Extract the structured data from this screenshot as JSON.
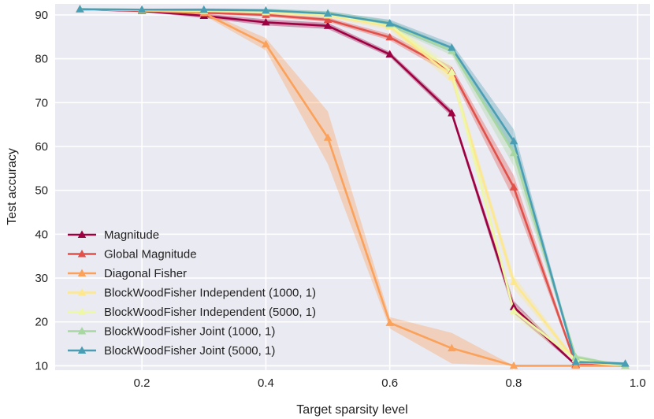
{
  "chart_data": {
    "type": "line",
    "title": "",
    "xlabel": "Target sparsity level",
    "ylabel": "Test accuracy",
    "xlim": [
      0.06,
      1.02
    ],
    "ylim": [
      9,
      92.5
    ],
    "xticks": [
      0.2,
      0.4,
      0.6,
      0.8,
      1.0
    ],
    "xtick_labels": [
      "0.2",
      "0.4",
      "0.6",
      "0.8",
      "1.0"
    ],
    "yticks": [
      10,
      20,
      30,
      40,
      50,
      60,
      70,
      80,
      90
    ],
    "ytick_labels": [
      "10",
      "20",
      "30",
      "40",
      "50",
      "60",
      "70",
      "80",
      "90"
    ],
    "grid": true,
    "legend_position": "bottom-left",
    "x": [
      0.1,
      0.2,
      0.3,
      0.4,
      0.5,
      0.6,
      0.7,
      0.8,
      0.9,
      0.98
    ],
    "series": [
      {
        "name": "Magnitude",
        "color": "#9e0142",
        "values": [
          91.3,
          90.9,
          89.8,
          88.3,
          87.5,
          81.0,
          67.6,
          23.4,
          10.2,
          10.0
        ],
        "lower": [
          91.1,
          90.7,
          89.3,
          87.6,
          86.8,
          80.4,
          66.8,
          22.0,
          10.0,
          10.0
        ],
        "upper": [
          91.5,
          91.1,
          90.3,
          89.0,
          88.2,
          81.6,
          68.4,
          24.8,
          10.4,
          10.0
        ]
      },
      {
        "name": "Global Magnitude",
        "color": "#e2504a",
        "values": [
          91.3,
          91.0,
          90.5,
          90.0,
          88.9,
          84.9,
          77.2,
          50.7,
          10.3,
          10.0
        ],
        "lower": [
          91.1,
          90.8,
          90.2,
          89.6,
          88.4,
          84.2,
          76.2,
          48.0,
          10.0,
          10.0
        ],
        "upper": [
          91.5,
          91.2,
          90.8,
          90.4,
          89.4,
          85.6,
          78.2,
          53.4,
          10.6,
          10.0
        ]
      },
      {
        "name": "Diagonal Fisher",
        "color": "#fba15a",
        "values": [
          91.3,
          91.0,
          90.4,
          83.3,
          62.0,
          19.8,
          14.0,
          10.0,
          10.0,
          10.0
        ],
        "lower": [
          91.1,
          90.7,
          89.9,
          81.9,
          56.0,
          18.5,
          10.5,
          10.0,
          10.0,
          10.0
        ],
        "upper": [
          91.5,
          91.3,
          90.9,
          84.7,
          68.0,
          21.1,
          17.5,
          10.0,
          10.0,
          10.0
        ]
      },
      {
        "name": "BlockWoodFisher Independent (1000, 1)",
        "color": "#fde88e",
        "values": [
          91.3,
          91.1,
          90.9,
          90.6,
          89.9,
          87.4,
          76.0,
          29.1,
          11.0,
          10.0
        ],
        "lower": [
          91.1,
          90.9,
          90.6,
          90.2,
          89.4,
          86.6,
          74.5,
          27.5,
          10.6,
          10.0
        ],
        "upper": [
          91.5,
          91.3,
          91.2,
          91.0,
          90.4,
          88.2,
          77.5,
          30.7,
          11.4,
          10.0
        ]
      },
      {
        "name": "BlockWoodFisher Independent (5000, 1)",
        "color": "#eef7a5",
        "values": [
          91.3,
          91.1,
          91.0,
          90.8,
          90.1,
          87.8,
          77.0,
          22.5,
          11.5,
          10.0
        ],
        "lower": [
          91.1,
          90.9,
          90.7,
          90.4,
          89.6,
          87.0,
          75.5,
          21.0,
          11.0,
          10.0
        ],
        "upper": [
          91.5,
          91.3,
          91.3,
          91.2,
          90.6,
          88.6,
          78.5,
          24.0,
          12.0,
          10.0
        ]
      },
      {
        "name": "BlockWoodFisher Joint (1000, 1)",
        "color": "#a7d8a1",
        "values": [
          91.3,
          91.2,
          91.1,
          91.0,
          90.4,
          87.9,
          81.8,
          58.5,
          12.0,
          10.0
        ],
        "lower": [
          91.1,
          91.0,
          90.8,
          90.6,
          89.9,
          87.1,
          80.8,
          55.5,
          11.5,
          10.0
        ],
        "upper": [
          91.5,
          91.4,
          91.4,
          91.4,
          90.9,
          88.7,
          82.8,
          61.5,
          12.5,
          10.0
        ]
      },
      {
        "name": "BlockWoodFisher Joint (5000, 1)",
        "color": "#4a9eb3",
        "values": [
          91.3,
          91.2,
          91.2,
          91.0,
          90.3,
          88.1,
          82.5,
          61.2,
          10.9,
          10.5
        ],
        "lower": [
          91.1,
          91.0,
          90.9,
          90.6,
          89.8,
          87.3,
          81.5,
          58.5,
          10.4,
          10.2
        ],
        "upper": [
          91.5,
          91.4,
          91.5,
          91.4,
          90.8,
          88.9,
          83.5,
          63.9,
          11.4,
          10.8
        ]
      }
    ]
  }
}
